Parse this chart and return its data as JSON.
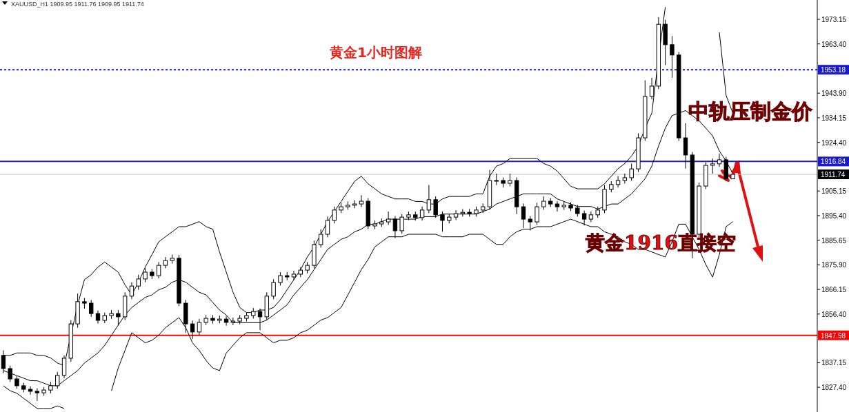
{
  "chart_data": {
    "type": "candlestick",
    "title": "黄金1小时图解",
    "subtitle": "XAUUSD_H1  1909.95 1911.76 1909.95 1911.74",
    "annotations": [
      "中轨压制金价",
      "黄金1916直接空"
    ],
    "categories": [
      null,
      null,
      null,
      null,
      null,
      null,
      null,
      null,
      null,
      null,
      null,
      null,
      null,
      null,
      null,
      null,
      null,
      null,
      null,
      null,
      null,
      null,
      null,
      null,
      null,
      null,
      null,
      null,
      null,
      null,
      null,
      null,
      null,
      null,
      null,
      null,
      null,
      null,
      null,
      null,
      null,
      null,
      null,
      null,
      null,
      null,
      null,
      null,
      null,
      null,
      null,
      null,
      null,
      null,
      null,
      null,
      null,
      null,
      null,
      null,
      null,
      null,
      null,
      null,
      null,
      null,
      null,
      null,
      null,
      null,
      null,
      null,
      null,
      null,
      null,
      null,
      null,
      null,
      null,
      null,
      null,
      null,
      null,
      null,
      null,
      null,
      null,
      null,
      null,
      null,
      null,
      null,
      null,
      null,
      null,
      null,
      null,
      null,
      null,
      null,
      null,
      null,
      null,
      null,
      null,
      null,
      null,
      null,
      null,
      null,
      null,
      null,
      null,
      null,
      null,
      null,
      null,
      null,
      null,
      null,
      null
    ],
    "ohlc": [
      [
        1840.0,
        1842.0,
        1833.0,
        1834.8
      ],
      [
        1834.8,
        1836.0,
        1829.5,
        1830.7
      ],
      [
        1830.7,
        1831.8,
        1826.8,
        1828.0
      ],
      [
        1828.0,
        1829.2,
        1825.4,
        1826.6
      ],
      [
        1826.6,
        1827.8,
        1824.5,
        1825.8
      ],
      [
        1825.8,
        1827.0,
        1822.0,
        1825.2
      ],
      [
        1825.2,
        1827.5,
        1824.0,
        1826.3
      ],
      [
        1826.3,
        1829.5,
        1825.0,
        1828.0
      ],
      [
        1828.0,
        1833.5,
        1826.8,
        1832.1
      ],
      [
        1832.1,
        1840.0,
        1831.0,
        1838.9
      ],
      [
        1838.9,
        1854.0,
        1837.5,
        1852.5
      ],
      [
        1852.5,
        1864.5,
        1851.0,
        1861.3
      ],
      [
        1861.3,
        1862.8,
        1858.5,
        1860.7
      ],
      [
        1860.7,
        1862.0,
        1855.3,
        1856.6
      ],
      [
        1856.6,
        1857.8,
        1852.6,
        1853.9
      ],
      [
        1853.9,
        1857.0,
        1852.8,
        1855.8
      ],
      [
        1855.8,
        1858.0,
        1854.5,
        1856.6
      ],
      [
        1856.6,
        1858.0,
        1852.0,
        1855.3
      ],
      [
        1855.3,
        1865.0,
        1854.0,
        1863.5
      ],
      [
        1863.5,
        1869.0,
        1862.3,
        1867.5
      ],
      [
        1867.5,
        1872.0,
        1866.0,
        1870.3
      ],
      [
        1870.3,
        1874.5,
        1869.0,
        1873.0
      ],
      [
        1873.0,
        1874.2,
        1870.3,
        1871.6
      ],
      [
        1871.6,
        1877.0,
        1870.5,
        1875.7
      ],
      [
        1875.7,
        1879.0,
        1874.5,
        1877.6
      ],
      [
        1877.6,
        1880.0,
        1876.4,
        1878.5
      ],
      [
        1878.5,
        1879.8,
        1859.5,
        1860.7
      ],
      [
        1860.7,
        1862.0,
        1849.0,
        1852.5
      ],
      [
        1852.5,
        1853.8,
        1846.5,
        1849.3
      ],
      [
        1849.3,
        1854.5,
        1848.0,
        1853.1
      ],
      [
        1853.1,
        1856.0,
        1852.0,
        1854.7
      ],
      [
        1854.7,
        1856.0,
        1852.6,
        1853.9
      ],
      [
        1853.9,
        1855.8,
        1852.7,
        1854.4
      ],
      [
        1854.4,
        1855.6,
        1851.8,
        1853.1
      ],
      [
        1853.1,
        1855.0,
        1852.0,
        1853.6
      ],
      [
        1853.6,
        1856.0,
        1852.4,
        1854.7
      ],
      [
        1854.7,
        1857.0,
        1853.5,
        1855.8
      ],
      [
        1855.8,
        1858.8,
        1854.6,
        1857.4
      ],
      [
        1857.4,
        1858.6,
        1850.0,
        1855.3
      ],
      [
        1855.3,
        1865.0,
        1854.0,
        1863.5
      ],
      [
        1863.5,
        1870.2,
        1862.3,
        1868.9
      ],
      [
        1868.9,
        1873.0,
        1867.7,
        1871.6
      ],
      [
        1871.6,
        1873.0,
        1869.8,
        1871.1
      ],
      [
        1871.1,
        1873.5,
        1869.9,
        1872.2
      ],
      [
        1872.2,
        1875.0,
        1871.0,
        1873.8
      ],
      [
        1873.8,
        1877.0,
        1872.5,
        1875.7
      ],
      [
        1875.7,
        1885.5,
        1874.5,
        1883.9
      ],
      [
        1883.9,
        1890.0,
        1882.7,
        1888.0
      ],
      [
        1888.0,
        1895.0,
        1886.8,
        1893.5
      ],
      [
        1893.5,
        1899.0,
        1892.3,
        1897.6
      ],
      [
        1897.6,
        1900.5,
        1896.4,
        1898.9
      ],
      [
        1898.9,
        1901.0,
        1897.7,
        1899.5
      ],
      [
        1899.5,
        1901.5,
        1898.3,
        1900.0
      ],
      [
        1900.0,
        1903.5,
        1898.8,
        1901.1
      ],
      [
        1901.1,
        1902.3,
        1890.0,
        1891.3
      ],
      [
        1891.3,
        1893.5,
        1890.0,
        1892.1
      ],
      [
        1892.1,
        1894.3,
        1890.9,
        1892.9
      ],
      [
        1892.9,
        1897.0,
        1891.7,
        1894.0
      ],
      [
        1894.0,
        1895.2,
        1886.5,
        1889.4
      ],
      [
        1889.4,
        1896.0,
        1888.2,
        1894.8
      ],
      [
        1894.8,
        1897.0,
        1893.6,
        1895.7
      ],
      [
        1895.7,
        1897.0,
        1893.4,
        1894.6
      ],
      [
        1894.6,
        1899.0,
        1893.4,
        1897.6
      ],
      [
        1897.6,
        1907.5,
        1896.4,
        1901.7
      ],
      [
        1901.7,
        1903.0,
        1894.5,
        1895.7
      ],
      [
        1895.7,
        1897.0,
        1889.0,
        1893.5
      ],
      [
        1893.5,
        1896.0,
        1892.3,
        1894.8
      ],
      [
        1894.8,
        1897.5,
        1893.6,
        1896.2
      ],
      [
        1896.2,
        1898.0,
        1895.0,
        1896.7
      ],
      [
        1896.7,
        1898.0,
        1895.0,
        1896.2
      ],
      [
        1896.2,
        1899.0,
        1895.0,
        1897.6
      ],
      [
        1897.6,
        1900.2,
        1896.4,
        1898.9
      ],
      [
        1898.9,
        1913.5,
        1897.7,
        1909.3
      ],
      [
        1909.3,
        1912.0,
        1907.5,
        1909.3
      ],
      [
        1909.3,
        1910.5,
        1906.5,
        1908.2
      ],
      [
        1908.2,
        1912.0,
        1907.0,
        1909.3
      ],
      [
        1909.3,
        1910.5,
        1896.0,
        1898.9
      ],
      [
        1898.9,
        1900.2,
        1890.5,
        1894.0
      ],
      [
        1894.0,
        1895.2,
        1889.5,
        1892.9
      ],
      [
        1892.9,
        1900.5,
        1891.7,
        1898.9
      ],
      [
        1898.9,
        1903.0,
        1897.7,
        1901.1
      ],
      [
        1901.1,
        1902.4,
        1898.8,
        1900.0
      ],
      [
        1900.0,
        1901.2,
        1897.0,
        1898.9
      ],
      [
        1898.9,
        1901.0,
        1897.7,
        1899.5
      ],
      [
        1899.5,
        1900.7,
        1897.2,
        1898.4
      ],
      [
        1898.4,
        1899.6,
        1895.0,
        1896.2
      ],
      [
        1896.2,
        1897.4,
        1891.5,
        1894.0
      ],
      [
        1894.0,
        1897.0,
        1892.8,
        1895.7
      ],
      [
        1895.7,
        1899.0,
        1894.5,
        1897.6
      ],
      [
        1897.6,
        1907.5,
        1896.4,
        1905.8
      ],
      [
        1905.8,
        1909.0,
        1904.6,
        1907.7
      ],
      [
        1907.7,
        1911.0,
        1906.5,
        1909.3
      ],
      [
        1909.3,
        1912.0,
        1908.1,
        1910.4
      ],
      [
        1910.4,
        1916.0,
        1909.2,
        1913.9
      ],
      [
        1913.9,
        1928.0,
        1912.7,
        1926.2
      ],
      [
        1926.2,
        1949.0,
        1925.0,
        1942.6
      ],
      [
        1942.6,
        1950.0,
        1941.4,
        1946.7
      ],
      [
        1946.7,
        1974.0,
        1945.5,
        1971.2
      ],
      [
        1971.2,
        1973.0,
        1955.0,
        1963.1
      ],
      [
        1963.1,
        1966.5,
        1950.0,
        1959.0
      ],
      [
        1959.0,
        1960.2,
        1925.0,
        1926.2
      ],
      [
        1926.2,
        1932.0,
        1914.0,
        1919.4
      ],
      [
        1919.4,
        1920.6,
        1878.5,
        1888.0
      ],
      [
        1888.0,
        1908.5,
        1886.8,
        1907.1
      ],
      [
        1907.1,
        1916.5,
        1905.9,
        1915.3
      ],
      [
        1915.3,
        1918.0,
        1912.0,
        1915.9
      ],
      [
        1915.9,
        1920.0,
        1914.7,
        1917.5
      ],
      [
        1917.5,
        1918.7,
        1909.0,
        1910.0
      ],
      [
        1909.95,
        1911.76,
        1909.95,
        1911.74
      ],
      null,
      null,
      null,
      null,
      null,
      null,
      null,
      null,
      null,
      null,
      null,
      null
    ],
    "series": [
      {
        "type": "line",
        "color": "#000000",
        "values": [
          1840,
          1840,
          1841,
          1841,
          1841,
          1840,
          1840,
          1839,
          1837,
          1836,
          1848,
          1860,
          1870,
          1872,
          1875,
          1877,
          1875,
          1873,
          1868,
          1864,
          1869,
          1875,
          1880,
          1885,
          1887,
          1889,
          1891,
          1891,
          1892,
          1893,
          1891,
          1890,
          1881,
          1873,
          1865,
          1859,
          1857,
          1857,
          1858,
          1858,
          1859,
          1862,
          1866,
          1870,
          1874,
          1879,
          1883,
          1888,
          1893,
          1897,
          1901,
          1905,
          1909,
          1911,
          1908,
          1906,
          1904,
          1903,
          1902,
          1902,
          1902,
          1901,
          1901,
          1900,
          1900,
          1902,
          1903,
          1903,
          1903,
          1903,
          1904,
          1904,
          1911,
          1915,
          1916,
          1918,
          1918,
          1918,
          1918,
          1918,
          1916,
          1915,
          1913,
          1910,
          1907,
          1906,
          1906,
          1906,
          1906,
          1908,
          1911,
          1914,
          1916,
          1919,
          1923,
          1930,
          1936,
          1958,
          1978,
          null,
          null,
          null,
          null,
          null,
          null,
          null,
          1968,
          1943,
          1936,
          null,
          null,
          null,
          null,
          null,
          null,
          null,
          null,
          null,
          null,
          null,
          null
        ]
      },
      {
        "type": "line",
        "color": "#000000",
        "values": [
          1834,
          1833,
          1832,
          1831,
          1830,
          1830,
          1829,
          1828,
          1828,
          1830,
          1832,
          1834,
          1837,
          1839,
          1841,
          1844,
          1848,
          1852,
          1856,
          1859,
          1861,
          1863,
          1864,
          1866,
          1867,
          1869,
          1870,
          1869,
          1867,
          1865,
          1864,
          1861,
          1858,
          1856,
          1853,
          1853,
          1853,
          1853,
          1853,
          1854,
          1856,
          1858,
          1860,
          1864,
          1867,
          1870,
          1874,
          1878,
          1882,
          1884,
          1886,
          1887,
          1889,
          1890,
          1892,
          1892,
          1893,
          1894,
          1894,
          1894,
          1894,
          1894,
          1895,
          1895,
          1895,
          1896,
          1896,
          1896,
          1896,
          1896,
          1896,
          1897,
          1898,
          1900,
          1901,
          1902,
          1903,
          1904,
          1904,
          1904,
          1904,
          1904,
          1902,
          1901,
          1900,
          1899,
          1899,
          1899,
          1898,
          1899,
          1900,
          1900,
          1902,
          1904,
          1907,
          1910,
          1915,
          1923,
          1930,
          1935,
          1936,
          1937,
          1935,
          1933,
          1930,
          1927,
          1921,
          1917,
          1912,
          null,
          null,
          null,
          null,
          null,
          null,
          null,
          null,
          null,
          null,
          null,
          null
        ]
      },
      {
        "type": "line",
        "color": "#000000",
        "values": [
          1828,
          1826,
          1825,
          1823,
          1821,
          1819,
          1819,
          1819,
          1820,
          1819,
          null,
          null,
          null,
          null,
          null,
          null,
          1826,
          1835,
          1842,
          1849,
          1847,
          1845,
          1846,
          1848,
          1851,
          1853,
          1855,
          1851,
          1845,
          1842,
          1838,
          1835,
          1834,
          1841,
          1844,
          1847,
          1849,
          1849,
          1849,
          1847,
          1845,
          1846,
          1846,
          1847,
          1849,
          1850,
          1852,
          1854,
          1855,
          1857,
          1859,
          1864,
          1869,
          1874,
          1878,
          1883,
          1885,
          1887,
          1887,
          1887,
          1888,
          1888,
          1888,
          1888,
          1888,
          1887,
          1887,
          1887,
          1887,
          1888,
          1888,
          1888,
          1886,
          1884,
          1884,
          1887,
          1889,
          1890,
          1890,
          1891,
          1891,
          1891,
          1892,
          1893,
          1894,
          1893,
          1892,
          1891,
          1891,
          1889,
          1888,
          1887,
          1885,
          1884,
          1882,
          1882,
          1881,
          1880,
          1879,
          1885,
          1892,
          1892,
          1887,
          1882,
          1876,
          1871,
          1880,
          1891,
          1893,
          null,
          null,
          null,
          null,
          null,
          null,
          null,
          null,
          null,
          null,
          null,
          null
        ]
      }
    ],
    "ylim": [
      1817.6,
      1980.8
    ],
    "yticks": [
      1973.15,
      {
        "value": 1963.4,
        "label": "1963.40"
      },
      {
        "value": 1943.9,
        "label": "1943.90"
      },
      1934.15,
      {
        "value": 1924.4,
        "label": "1924.40"
      },
      1905.15,
      {
        "value": 1895.4,
        "label": "1895.40"
      },
      1885.65,
      {
        "value": 1875.9,
        "label": "1875.90"
      },
      1866.15,
      {
        "value": 1856.4,
        "label": "1856.40"
      },
      1837.15,
      {
        "value": 1827.4,
        "label": "1827.40"
      }
    ],
    "ref_lines": [
      {
        "axis": "y",
        "value": 1953.18,
        "label": "1953.18",
        "color": "#1a1acc",
        "line_style": "dashed"
      },
      {
        "axis": "y",
        "value": 1916.84,
        "label": "1916.84",
        "color": "#1a1acc",
        "line_style": "solid"
      },
      {
        "axis": "y",
        "value": 1911.74,
        "label": "1911.74",
        "color": "#c0c0c0",
        "line_style": "solid"
      },
      {
        "axis": "y",
        "value": 1847.98,
        "label": "1847.98",
        "color": "#ff0000",
        "line_style": "solid"
      }
    ]
  }
}
